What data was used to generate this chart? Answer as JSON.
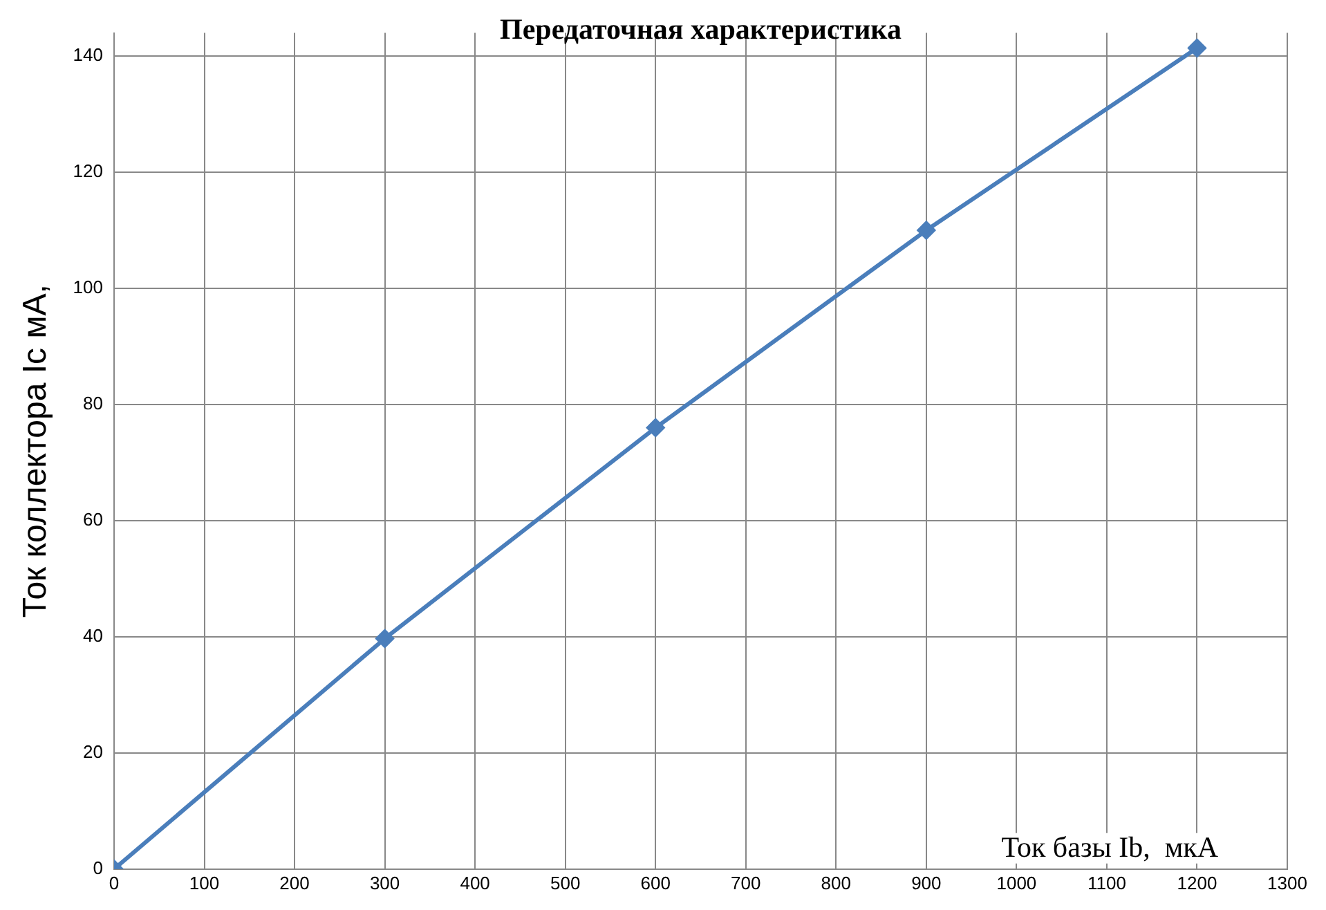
{
  "chart_data": {
    "type": "line",
    "title": "Передаточная характеристика",
    "xlabel": "Ток базы Ib,  мкА",
    "ylabel": "Ток коллектора Ic мА,",
    "x": [
      0,
      300,
      600,
      900,
      1200
    ],
    "series": [
      {
        "color": "#4a7ebb",
        "values": [
          0,
          39.7,
          76,
          110,
          141.4
        ]
      }
    ],
    "xlim": [
      0,
      1300
    ],
    "xticks": [
      0,
      100,
      200,
      300,
      400,
      500,
      600,
      700,
      800,
      900,
      1000,
      1100,
      1200,
      1300
    ],
    "ylim": [
      0,
      144
    ],
    "yticks": [
      0,
      20,
      40,
      60,
      80,
      100,
      120,
      140
    ],
    "grid": true,
    "legend": false,
    "marker": "diamond",
    "line_style": "solid"
  }
}
